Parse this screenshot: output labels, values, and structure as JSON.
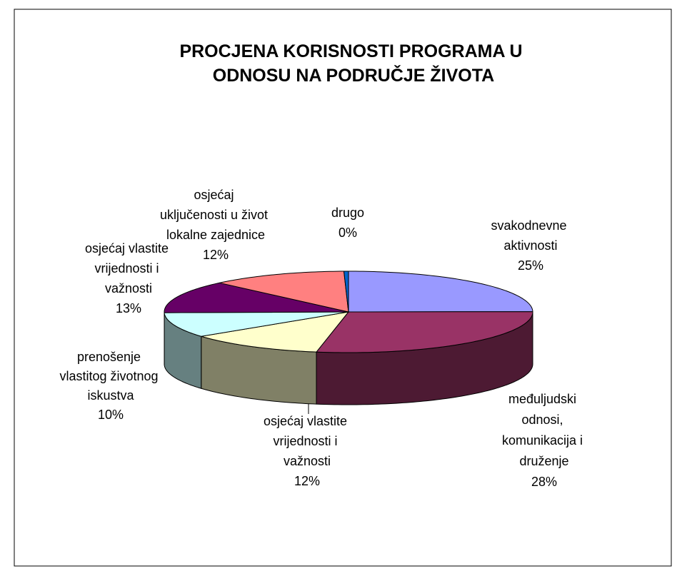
{
  "chart_data": {
    "type": "pie3d",
    "title": "PROCJENA KORISNOSTI PROGRAMA U ODNOSU NA PODRUČJE ŽIVOTA",
    "categories": [
      "svakodnevne aktivnosti",
      "međuljudski odnosi, komunikacija i druženje",
      "osjećaj vlastite vrijednosti i važnosti",
      "prenošenje vlastitog životnog iskustva",
      "osjećaj vlastite vrijednosti i važnosti",
      "osjećaj uključenosti u život lokalne zajednice",
      "drugo"
    ],
    "values": [
      25,
      28,
      12,
      10,
      13,
      12,
      0.4
    ],
    "value_labels": [
      "25%",
      "28%",
      "12%",
      "10%",
      "13%",
      "12%",
      "0%"
    ],
    "colors": [
      "#9999ff",
      "#993366",
      "#ffffcc",
      "#ccffff",
      "#660066",
      "#ff8080",
      "#0066cc"
    ]
  }
}
